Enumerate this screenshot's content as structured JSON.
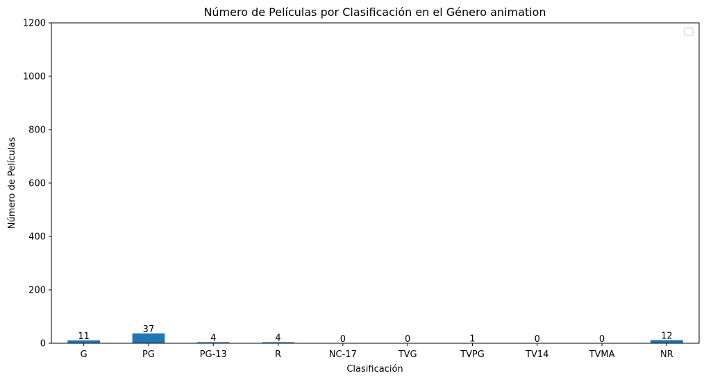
{
  "chart_data": {
    "type": "bar",
    "title": "Número de Películas por Clasificación en el Género animation",
    "xlabel": "Clasificación",
    "ylabel": "Número de Películas",
    "categories": [
      "G",
      "PG",
      "PG-13",
      "R",
      "NC-17",
      "TVG",
      "TVPG",
      "TV14",
      "TVMA",
      "NR"
    ],
    "values": [
      11,
      37,
      4,
      4,
      0,
      0,
      1,
      0,
      0,
      12
    ],
    "ylim": [
      0,
      1200
    ],
    "yticks": [
      0,
      200,
      400,
      600,
      800,
      1000,
      1200
    ],
    "bar_color": "#1f77b4",
    "grid": false,
    "legend": {
      "placement": "top-right",
      "entries": []
    }
  }
}
